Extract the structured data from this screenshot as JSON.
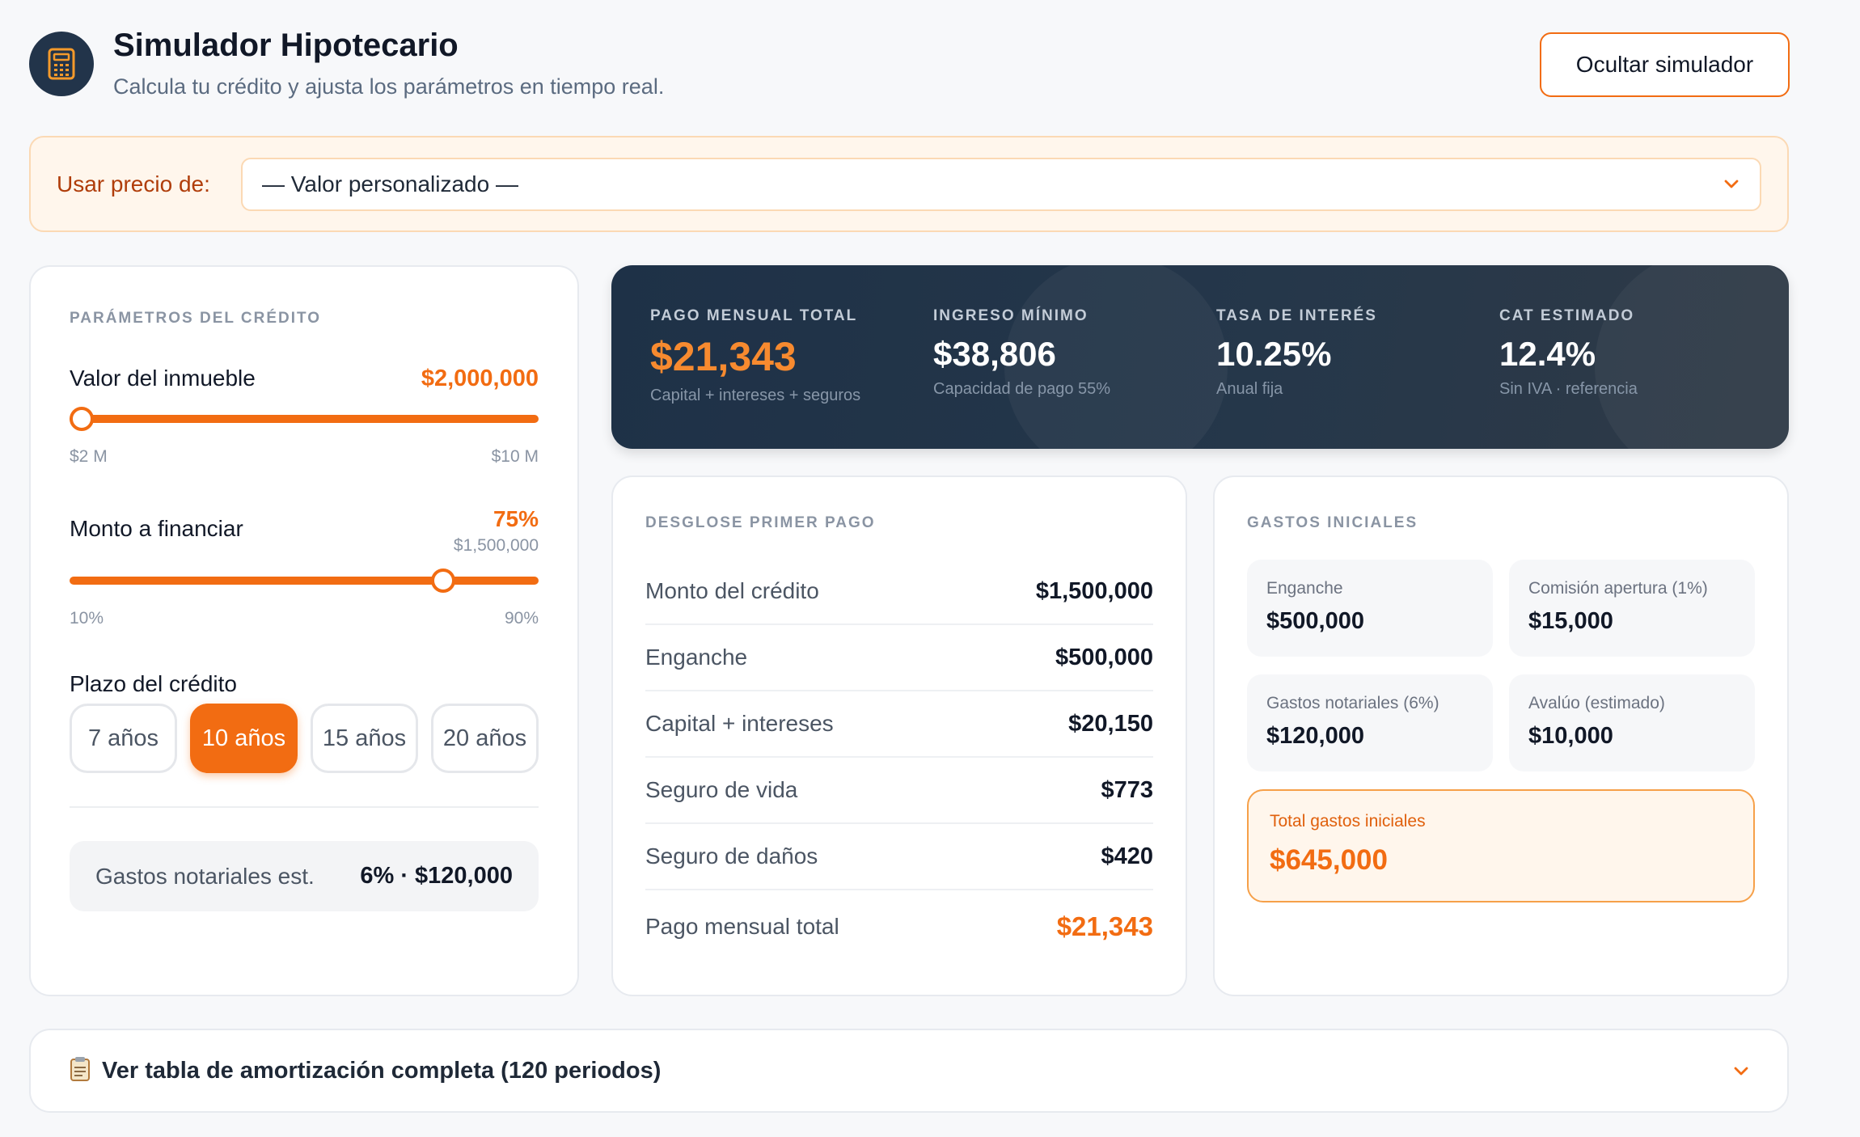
{
  "header": {
    "title": "Simulador Hipotecario",
    "subtitle": "Calcula tu crédito y ajusta los parámetros en tiempo real.",
    "hide_button": "Ocultar simulador",
    "icon": "calculator-icon"
  },
  "price_source": {
    "label": "Usar precio de:",
    "selected": "— Valor personalizado —"
  },
  "parameters": {
    "section_title": "PARÁMETROS DEL CRÉDITO",
    "property_value": {
      "label": "Valor del inmueble",
      "value": "$2,000,000",
      "min_label": "$2 M",
      "max_label": "$10 M",
      "level": 0.0
    },
    "financing": {
      "label": "Monto a financiar",
      "percent": "75%",
      "amount": "$1,500,000",
      "min_label": "10%",
      "max_label": "90%",
      "level": 0.8125
    },
    "term": {
      "label": "Plazo del crédito",
      "options": [
        "7 años",
        "10 años",
        "15 años",
        "20 años"
      ],
      "selected": "10 años"
    },
    "notary": {
      "label": "Gastos notariales est.",
      "value": "6% · $120,000"
    }
  },
  "summary": {
    "items": [
      {
        "label": "PAGO MENSUAL TOTAL",
        "value": "$21,343",
        "sub": "Capital + intereses + seguros"
      },
      {
        "label": "INGRESO MÍNIMO",
        "value": "$38,806",
        "sub": "Capacidad de pago 55%"
      },
      {
        "label": "TASA DE INTERÉS",
        "value": "10.25%",
        "sub": "Anual fija"
      },
      {
        "label": "CAT ESTIMADO",
        "value": "12.4%",
        "sub": "Sin IVA · referencia"
      }
    ]
  },
  "breakdown": {
    "section_title": "DESGLOSE PRIMER PAGO",
    "rows": [
      {
        "label": "Monto del crédito",
        "value": "$1,500,000"
      },
      {
        "label": "Enganche",
        "value": "$500,000"
      },
      {
        "label": "Capital + intereses",
        "value": "$20,150"
      },
      {
        "label": "Seguro de vida",
        "value": "$773"
      },
      {
        "label": "Seguro de daños",
        "value": "$420"
      },
      {
        "label": "Pago mensual total",
        "value": "$21,343"
      }
    ]
  },
  "initial_costs": {
    "section_title": "GASTOS INICIALES",
    "items": [
      {
        "label": "Enganche",
        "value": "$500,000"
      },
      {
        "label": "Comisión apertura (1%)",
        "value": "$15,000"
      },
      {
        "label": "Gastos notariales (6%)",
        "value": "$120,000"
      },
      {
        "label": "Avalúo (estimado)",
        "value": "$10,000"
      }
    ],
    "total_label": "Total gastos iniciales",
    "total_value": "$645,000"
  },
  "amortization": {
    "icon": "clipboard-icon",
    "label": "Ver tabla de amortización completa (120 periodos)"
  },
  "colors": {
    "accent": "#f26c12",
    "navy": "#22344a"
  }
}
